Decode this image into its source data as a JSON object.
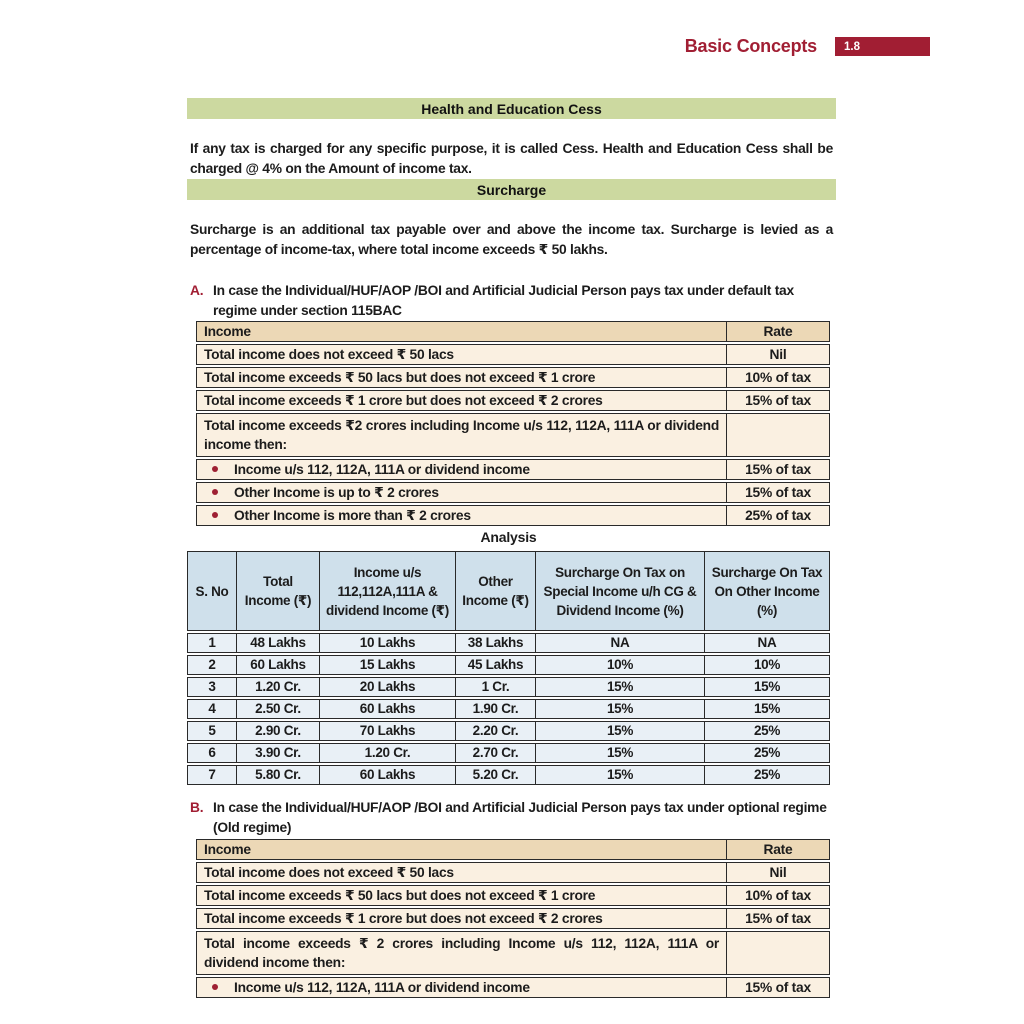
{
  "header": {
    "title": "Basic Concepts",
    "page_number": "1.8"
  },
  "banners": {
    "cess": "Health and Education Cess",
    "surcharge": "Surcharge"
  },
  "paragraphs": {
    "cess": "If any tax is charged for any specific purpose, it is called Cess. Health and Education Cess shall be charged @ 4% on the Amount of income tax.",
    "surcharge": "Surcharge is an additional tax payable over and above the income tax. Surcharge is levied as a percentage of income-tax, where total income exceeds ₹ 50 lakhs."
  },
  "section_a": {
    "label": "A.",
    "heading": "In case the Individual/HUF/AOP /BOI and Artificial Judicial Person pays tax under default tax regime under section 115BAC",
    "table": {
      "headers": [
        "Income",
        "Rate"
      ],
      "rows": [
        {
          "income": "Total income does not exceed ₹ 50 lacs",
          "rate": "Nil",
          "bullet": false,
          "tall": false
        },
        {
          "income": "Total income exceeds ₹ 50 lacs but does not exceed ₹ 1 crore",
          "rate": "10% of tax",
          "bullet": false,
          "tall": false
        },
        {
          "income": "Total income exceeds ₹ 1 crore but does not exceed ₹ 2 crores",
          "rate": "15% of tax",
          "bullet": false,
          "tall": false
        },
        {
          "income": "Total income exceeds ₹2 crores including Income u/s 112, 112A, 111A or dividend income then:",
          "rate": "",
          "bullet": false,
          "tall": true
        },
        {
          "income": "Income u/s 112, 112A, 111A or dividend income",
          "rate": "15% of tax",
          "bullet": true,
          "tall": false
        },
        {
          "income": "Other Income is up to ₹ 2 crores",
          "rate": "15% of tax",
          "bullet": true,
          "tall": false
        },
        {
          "income": "Other Income is more than ₹ 2 crores",
          "rate": "25% of tax",
          "bullet": true,
          "tall": false
        }
      ]
    }
  },
  "analysis": {
    "title": "Analysis",
    "headers": [
      "S. No",
      "Total Income (₹)",
      "Income u/s 112,112A,111A & dividend Income (₹)",
      "Other Income (₹)",
      "Surcharge On Tax on Special Income u/h CG & Dividend Income (%)",
      "Surcharge On Tax On Other Income (%)"
    ],
    "rows": [
      [
        "1",
        "48 Lakhs",
        "10 Lakhs",
        "38 Lakhs",
        "NA",
        "NA"
      ],
      [
        "2",
        "60 Lakhs",
        "15 Lakhs",
        "45 Lakhs",
        "10%",
        "10%"
      ],
      [
        "3",
        "1.20 Cr.",
        "20 Lakhs",
        "1 Cr.",
        "15%",
        "15%"
      ],
      [
        "4",
        "2.50 Cr.",
        "60 Lakhs",
        "1.90 Cr.",
        "15%",
        "15%"
      ],
      [
        "5",
        "2.90 Cr.",
        "70 Lakhs",
        "2.20 Cr.",
        "15%",
        "25%"
      ],
      [
        "6",
        "3.90 Cr.",
        "1.20 Cr.",
        "2.70 Cr.",
        "15%",
        "25%"
      ],
      [
        "7",
        "5.80 Cr.",
        "60 Lakhs",
        "5.20 Cr.",
        "15%",
        "25%"
      ]
    ]
  },
  "section_b": {
    "label": "B.",
    "heading": "In case the Individual/HUF/AOP /BOI and Artificial Judicial Person pays tax under optional regime (Old regime)",
    "table": {
      "headers": [
        "Income",
        "Rate"
      ],
      "rows": [
        {
          "income": "Total income does not exceed ₹ 50 lacs",
          "rate": "Nil",
          "bullet": false,
          "tall": false
        },
        {
          "income": "Total income exceeds ₹ 50 lacs but does not exceed ₹ 1 crore",
          "rate": "10% of tax",
          "bullet": false,
          "tall": false
        },
        {
          "income": "Total income exceeds ₹ 1 crore but does not exceed ₹ 2 crores",
          "rate": "15% of tax",
          "bullet": false,
          "tall": false
        },
        {
          "income": "Total income exceeds ₹ 2 crores including Income u/s 112, 112A, 111A or dividend income then:",
          "rate": "",
          "bullet": false,
          "tall": true
        },
        {
          "income": "Income u/s 112, 112A, 111A or dividend income",
          "rate": "15% of tax",
          "bullet": true,
          "tall": false
        }
      ]
    }
  },
  "colors": {
    "accent_red": "#a11e33",
    "banner_green": "#ccd9a0",
    "rate_table_header_bg": "#ecd8b6",
    "rate_table_row_bg": "#faf0e1",
    "analysis_header_bg": "#cfe0eb",
    "analysis_row_bg": "#e9f0f6",
    "bullet_red": "#9e2033"
  }
}
